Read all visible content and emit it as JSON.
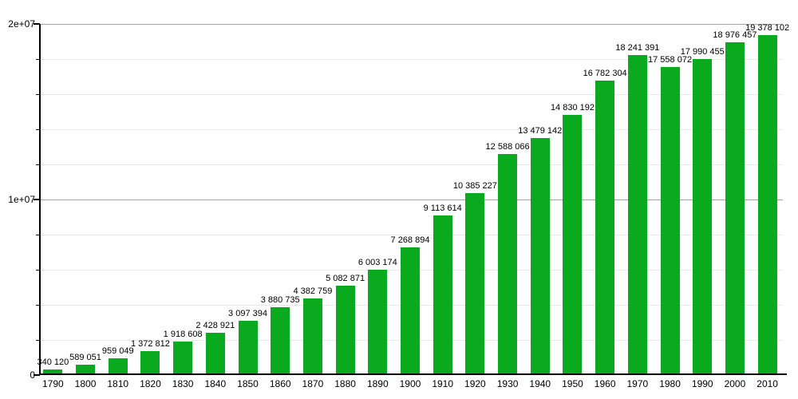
{
  "chart": {
    "background": "#ffffff",
    "bar_color": "#0aaa1e",
    "bar_border_color": "#089a1a",
    "axis_color": "#000000",
    "major_grid_color": "#a6a6a6",
    "minor_grid_color": "#e9e9e9",
    "label_color": "#000000"
  },
  "chart_data": {
    "type": "bar",
    "title": "",
    "xlabel": "",
    "ylabel": "",
    "legend": "none",
    "grid": true,
    "ylim": [
      0,
      20000000
    ],
    "y_major_ticks": [
      {
        "value": 0,
        "label": "0"
      },
      {
        "value": 10000000,
        "label": "1e+07"
      },
      {
        "value": 20000000,
        "label": "2e+07"
      }
    ],
    "y_minor_step": 2000000,
    "categories": [
      "1790",
      "1800",
      "1810",
      "1820",
      "1830",
      "1840",
      "1850",
      "1860",
      "1870",
      "1880",
      "1890",
      "1900",
      "1910",
      "1920",
      "1930",
      "1940",
      "1950",
      "1960",
      "1970",
      "1980",
      "1990",
      "2000",
      "2010"
    ],
    "values": [
      340120,
      589051,
      959049,
      1372812,
      1918608,
      2428921,
      3097394,
      3880735,
      4382759,
      5082871,
      6003174,
      7268894,
      9113614,
      10385227,
      12588066,
      13479142,
      14830192,
      16782304,
      18241391,
      17558072,
      17990455,
      18976457,
      19378102
    ],
    "value_labels": [
      "340 120",
      "589 051",
      "959 049",
      "1 372 812",
      "1 918 608",
      "2 428 921",
      "3 097 394",
      "3 880 735",
      "4 382 759",
      "5 082 871",
      "6 003 174",
      "7 268 894",
      "9 113 614",
      "10 385 227",
      "12 588 066",
      "13 479 142",
      "14 830 192",
      "16 782 304",
      "18 241 391",
      "17 558 072",
      "17 990 455",
      "18 976 457",
      "19 378 102"
    ]
  }
}
